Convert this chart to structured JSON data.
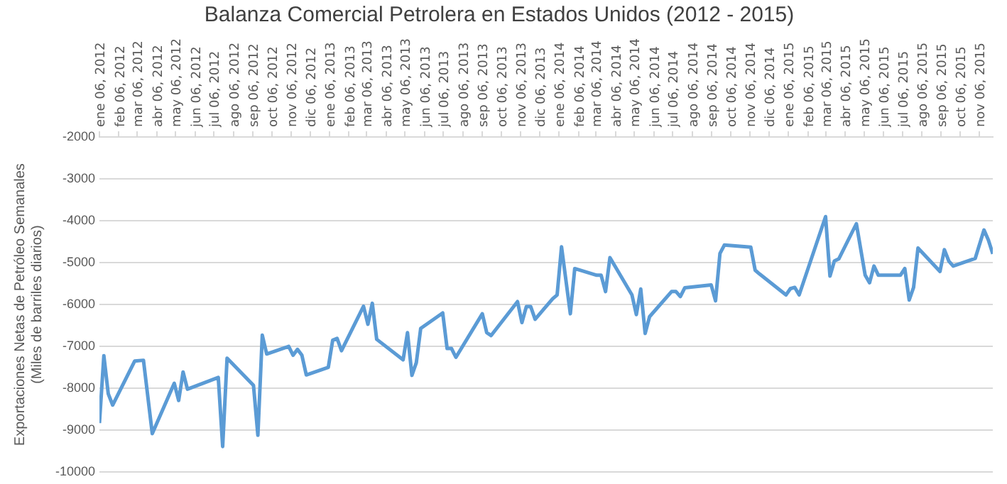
{
  "chart_data": {
    "type": "line",
    "title": "Balanza Comercial Petrolera en Estados Unidos (2012 - 2015)",
    "ylabel": "Exportaciones Netas de Petróleo Semanales\n(Miles de barriles diarios)",
    "x": [
      "2012-01-06",
      "2012-01-13",
      "2012-01-20",
      "2012-01-27",
      "2012-03-02",
      "2012-03-16",
      "2012-03-30",
      "2012-05-04",
      "2012-05-11",
      "2012-05-18",
      "2012-05-25",
      "2012-07-13",
      "2012-07-20",
      "2012-07-27",
      "2012-09-07",
      "2012-09-14",
      "2012-09-21",
      "2012-09-28",
      "2012-11-02",
      "2012-11-09",
      "2012-11-16",
      "2012-11-23",
      "2012-11-30",
      "2013-01-04",
      "2013-01-11",
      "2013-01-18",
      "2013-01-25",
      "2013-03-01",
      "2013-03-08",
      "2013-03-15",
      "2013-03-22",
      "2013-05-03",
      "2013-05-10",
      "2013-05-17",
      "2013-05-24",
      "2013-05-31",
      "2013-07-05",
      "2013-07-12",
      "2013-07-19",
      "2013-07-26",
      "2013-09-06",
      "2013-09-13",
      "2013-09-20",
      "2013-11-01",
      "2013-11-08",
      "2013-11-15",
      "2013-11-22",
      "2013-11-29",
      "2013-12-27",
      "2014-01-03",
      "2014-01-10",
      "2014-01-24",
      "2014-01-31",
      "2014-03-07",
      "2014-03-14",
      "2014-03-21",
      "2014-03-28",
      "2014-05-02",
      "2014-05-09",
      "2014-05-16",
      "2014-05-23",
      "2014-05-30",
      "2014-07-04",
      "2014-07-11",
      "2014-07-18",
      "2014-07-25",
      "2014-09-05",
      "2014-09-12",
      "2014-09-19",
      "2014-09-26",
      "2014-11-07",
      "2014-11-14",
      "2014-11-21",
      "2015-01-02",
      "2015-01-09",
      "2015-01-16",
      "2015-01-23",
      "2015-03-06",
      "2015-03-13",
      "2015-03-20",
      "2015-03-27",
      "2015-04-24",
      "2015-05-08",
      "2015-05-15",
      "2015-05-22",
      "2015-05-29",
      "2015-07-03",
      "2015-07-10",
      "2015-07-17",
      "2015-07-24",
      "2015-07-31",
      "2015-09-04",
      "2015-09-11",
      "2015-09-18",
      "2015-09-25",
      "2015-10-30",
      "2015-11-13",
      "2015-11-20",
      "2015-11-27"
    ],
    "series": [
      {
        "color": "#5b9bd5",
        "values": [
          -8830,
          -7220,
          -8130,
          -8400,
          -7350,
          -7330,
          -9080,
          -7880,
          -8290,
          -7610,
          -8020,
          -7740,
          -9390,
          -7280,
          -7930,
          -9120,
          -6730,
          -7180,
          -7000,
          -7210,
          -7070,
          -7210,
          -7680,
          -7500,
          -6850,
          -6810,
          -7100,
          -6040,
          -6470,
          -5970,
          -6830,
          -7320,
          -6670,
          -7690,
          -7390,
          -6570,
          -6200,
          -7050,
          -7050,
          -7260,
          -6220,
          -6670,
          -6740,
          -5930,
          -6430,
          -6050,
          -6050,
          -6350,
          -5860,
          -5770,
          -4620,
          -6220,
          -5140,
          -5300,
          -5300,
          -5690,
          -4880,
          -5770,
          -6240,
          -5630,
          -6690,
          -6290,
          -5690,
          -5690,
          -5810,
          -5600,
          -5530,
          -5910,
          -4780,
          -4580,
          -4630,
          -5180,
          -5270,
          -5770,
          -5620,
          -5590,
          -5770,
          -3900,
          -5320,
          -4960,
          -4910,
          -4070,
          -5300,
          -5480,
          -5080,
          -5300,
          -5300,
          -5140,
          -5890,
          -5590,
          -4650,
          -5210,
          -4690,
          -4960,
          -5080,
          -4900,
          -4220,
          -4460,
          -4790
        ]
      }
    ],
    "xlim": [
      "2012-01-06",
      "2015-11-27"
    ],
    "xticks": [
      {
        "value": "2012-01-06",
        "label": "ene 06, 2012"
      },
      {
        "value": "2012-02-06",
        "label": "feb 06, 2012"
      },
      {
        "value": "2012-03-06",
        "label": "mar 06, 2012"
      },
      {
        "value": "2012-04-06",
        "label": "abr 06, 2012"
      },
      {
        "value": "2012-05-06",
        "label": "may 06, 2012"
      },
      {
        "value": "2012-06-06",
        "label": "jun 06, 2012"
      },
      {
        "value": "2012-07-06",
        "label": "jul 06, 2012"
      },
      {
        "value": "2012-08-06",
        "label": "ago 06, 2012"
      },
      {
        "value": "2012-09-06",
        "label": "sep 06, 2012"
      },
      {
        "value": "2012-10-06",
        "label": "oct 06, 2012"
      },
      {
        "value": "2012-11-06",
        "label": "nov 06, 2012"
      },
      {
        "value": "2012-12-06",
        "label": "dic 06, 2012"
      },
      {
        "value": "2013-01-06",
        "label": "ene 06, 2013"
      },
      {
        "value": "2013-02-06",
        "label": "feb 06, 2013"
      },
      {
        "value": "2013-03-06",
        "label": "mar 06, 2013"
      },
      {
        "value": "2013-04-06",
        "label": "abr 06, 2013"
      },
      {
        "value": "2013-05-06",
        "label": "may 06, 2013"
      },
      {
        "value": "2013-06-06",
        "label": "jun 06, 2013"
      },
      {
        "value": "2013-07-06",
        "label": "jul 06, 2013"
      },
      {
        "value": "2013-08-06",
        "label": "ago 06, 2013"
      },
      {
        "value": "2013-09-06",
        "label": "sep 06, 2013"
      },
      {
        "value": "2013-10-06",
        "label": "oct 06, 2013"
      },
      {
        "value": "2013-11-06",
        "label": "nov 06, 2013"
      },
      {
        "value": "2013-12-06",
        "label": "dic 06, 2013"
      },
      {
        "value": "2014-01-06",
        "label": "ene 06, 2014"
      },
      {
        "value": "2014-02-06",
        "label": "feb 06, 2014"
      },
      {
        "value": "2014-03-06",
        "label": "mar 06, 2014"
      },
      {
        "value": "2014-04-06",
        "label": "abr 06, 2014"
      },
      {
        "value": "2014-05-06",
        "label": "may 06, 2014"
      },
      {
        "value": "2014-06-06",
        "label": "jun 06, 2014"
      },
      {
        "value": "2014-07-06",
        "label": "jul 06, 2014"
      },
      {
        "value": "2014-08-06",
        "label": "ago 06, 2014"
      },
      {
        "value": "2014-09-06",
        "label": "sep 06, 2014"
      },
      {
        "value": "2014-10-06",
        "label": "oct 06, 2014"
      },
      {
        "value": "2014-11-06",
        "label": "nov 06, 2014"
      },
      {
        "value": "2014-12-06",
        "label": "dic 06, 2014"
      },
      {
        "value": "2015-01-06",
        "label": "ene 06, 2015"
      },
      {
        "value": "2015-02-06",
        "label": "feb 06, 2015"
      },
      {
        "value": "2015-03-06",
        "label": "mar 06, 2015"
      },
      {
        "value": "2015-04-06",
        "label": "abr 06, 2015"
      },
      {
        "value": "2015-05-06",
        "label": "may 06, 2015"
      },
      {
        "value": "2015-06-06",
        "label": "jun 06, 2015"
      },
      {
        "value": "2015-07-06",
        "label": "jul 06, 2015"
      },
      {
        "value": "2015-08-06",
        "label": "ago 06, 2015"
      },
      {
        "value": "2015-09-06",
        "label": "sep 06, 2015"
      },
      {
        "value": "2015-10-06",
        "label": "oct 06, 2015"
      },
      {
        "value": "2015-11-06",
        "label": "nov 06, 2015"
      }
    ],
    "ylim": [
      -10000,
      -2000
    ],
    "yticks": [
      -2000,
      -3000,
      -4000,
      -5000,
      -6000,
      -7000,
      -8000,
      -9000,
      -10000
    ],
    "grid": "y",
    "legend": false
  }
}
